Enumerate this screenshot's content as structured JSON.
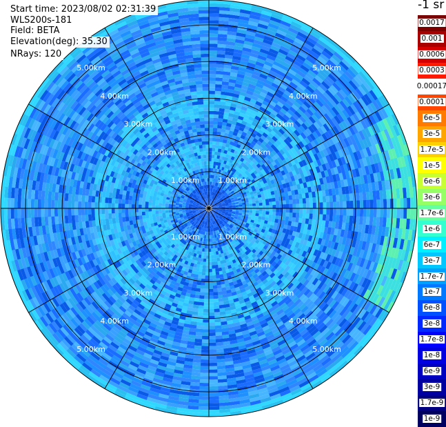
{
  "info": {
    "start_time": "Start time: 2023/08/02 02:31:39",
    "instrument": "WLS200s-181",
    "field": "Field: BETA",
    "elevation": "Elevation(deg): 35.30",
    "nrays": "NRays: 120"
  },
  "colorbar": {
    "units_label": "-1 sr",
    "tick_labels": [
      "0.0017",
      "0.001",
      "0.0006",
      "0.0003",
      "0.00017",
      "0.0001",
      "6e-5",
      "3e-5",
      "1.7e-5",
      "1e-5",
      "6e-6",
      "3e-6",
      "1.7e-6",
      "1e-6",
      "6e-7",
      "3e-7",
      "1.7e-7",
      "1e-7",
      "6e-8",
      "3e-8",
      "1.7e-8",
      "1e-8",
      "6e-9",
      "3e-9",
      "1.7e-9",
      "1e-9"
    ],
    "colors": [
      "#7a0000",
      "#a80000",
      "#d40000",
      "#ff1a00",
      "#ffffff",
      "#ff4500",
      "#ff7a00",
      "#ffa500",
      "#ffd000",
      "#ffff00",
      "#c8ff33",
      "#96ff66",
      "#66ffa0",
      "#33ffd0",
      "#00f0ff",
      "#00c8ff",
      "#00a0ff",
      "#0078ff",
      "#0050ff",
      "#0028ff",
      "#0000ff",
      "#0000e0",
      "#0000c0",
      "#0000a0",
      "#000080",
      "#000060"
    ]
  },
  "chart_data": {
    "type": "heatmap",
    "projection": "polar (PPI scan)",
    "nrays": 120,
    "field": "BETA",
    "elevation_deg": 35.3,
    "range_rings_km": [
      1.0,
      2.0,
      3.0,
      4.0,
      5.0
    ],
    "range_ring_labels": [
      "1.00km",
      "2.00km",
      "3.00km",
      "4.00km",
      "5.00km"
    ],
    "azimuth_spokes_deg": [
      0,
      30,
      60,
      90,
      120,
      150,
      180,
      210,
      240,
      270,
      300,
      330
    ],
    "max_range_km": 5.9,
    "dominant_beta_range": [
      "1e-7",
      "6e-7"
    ]
  }
}
